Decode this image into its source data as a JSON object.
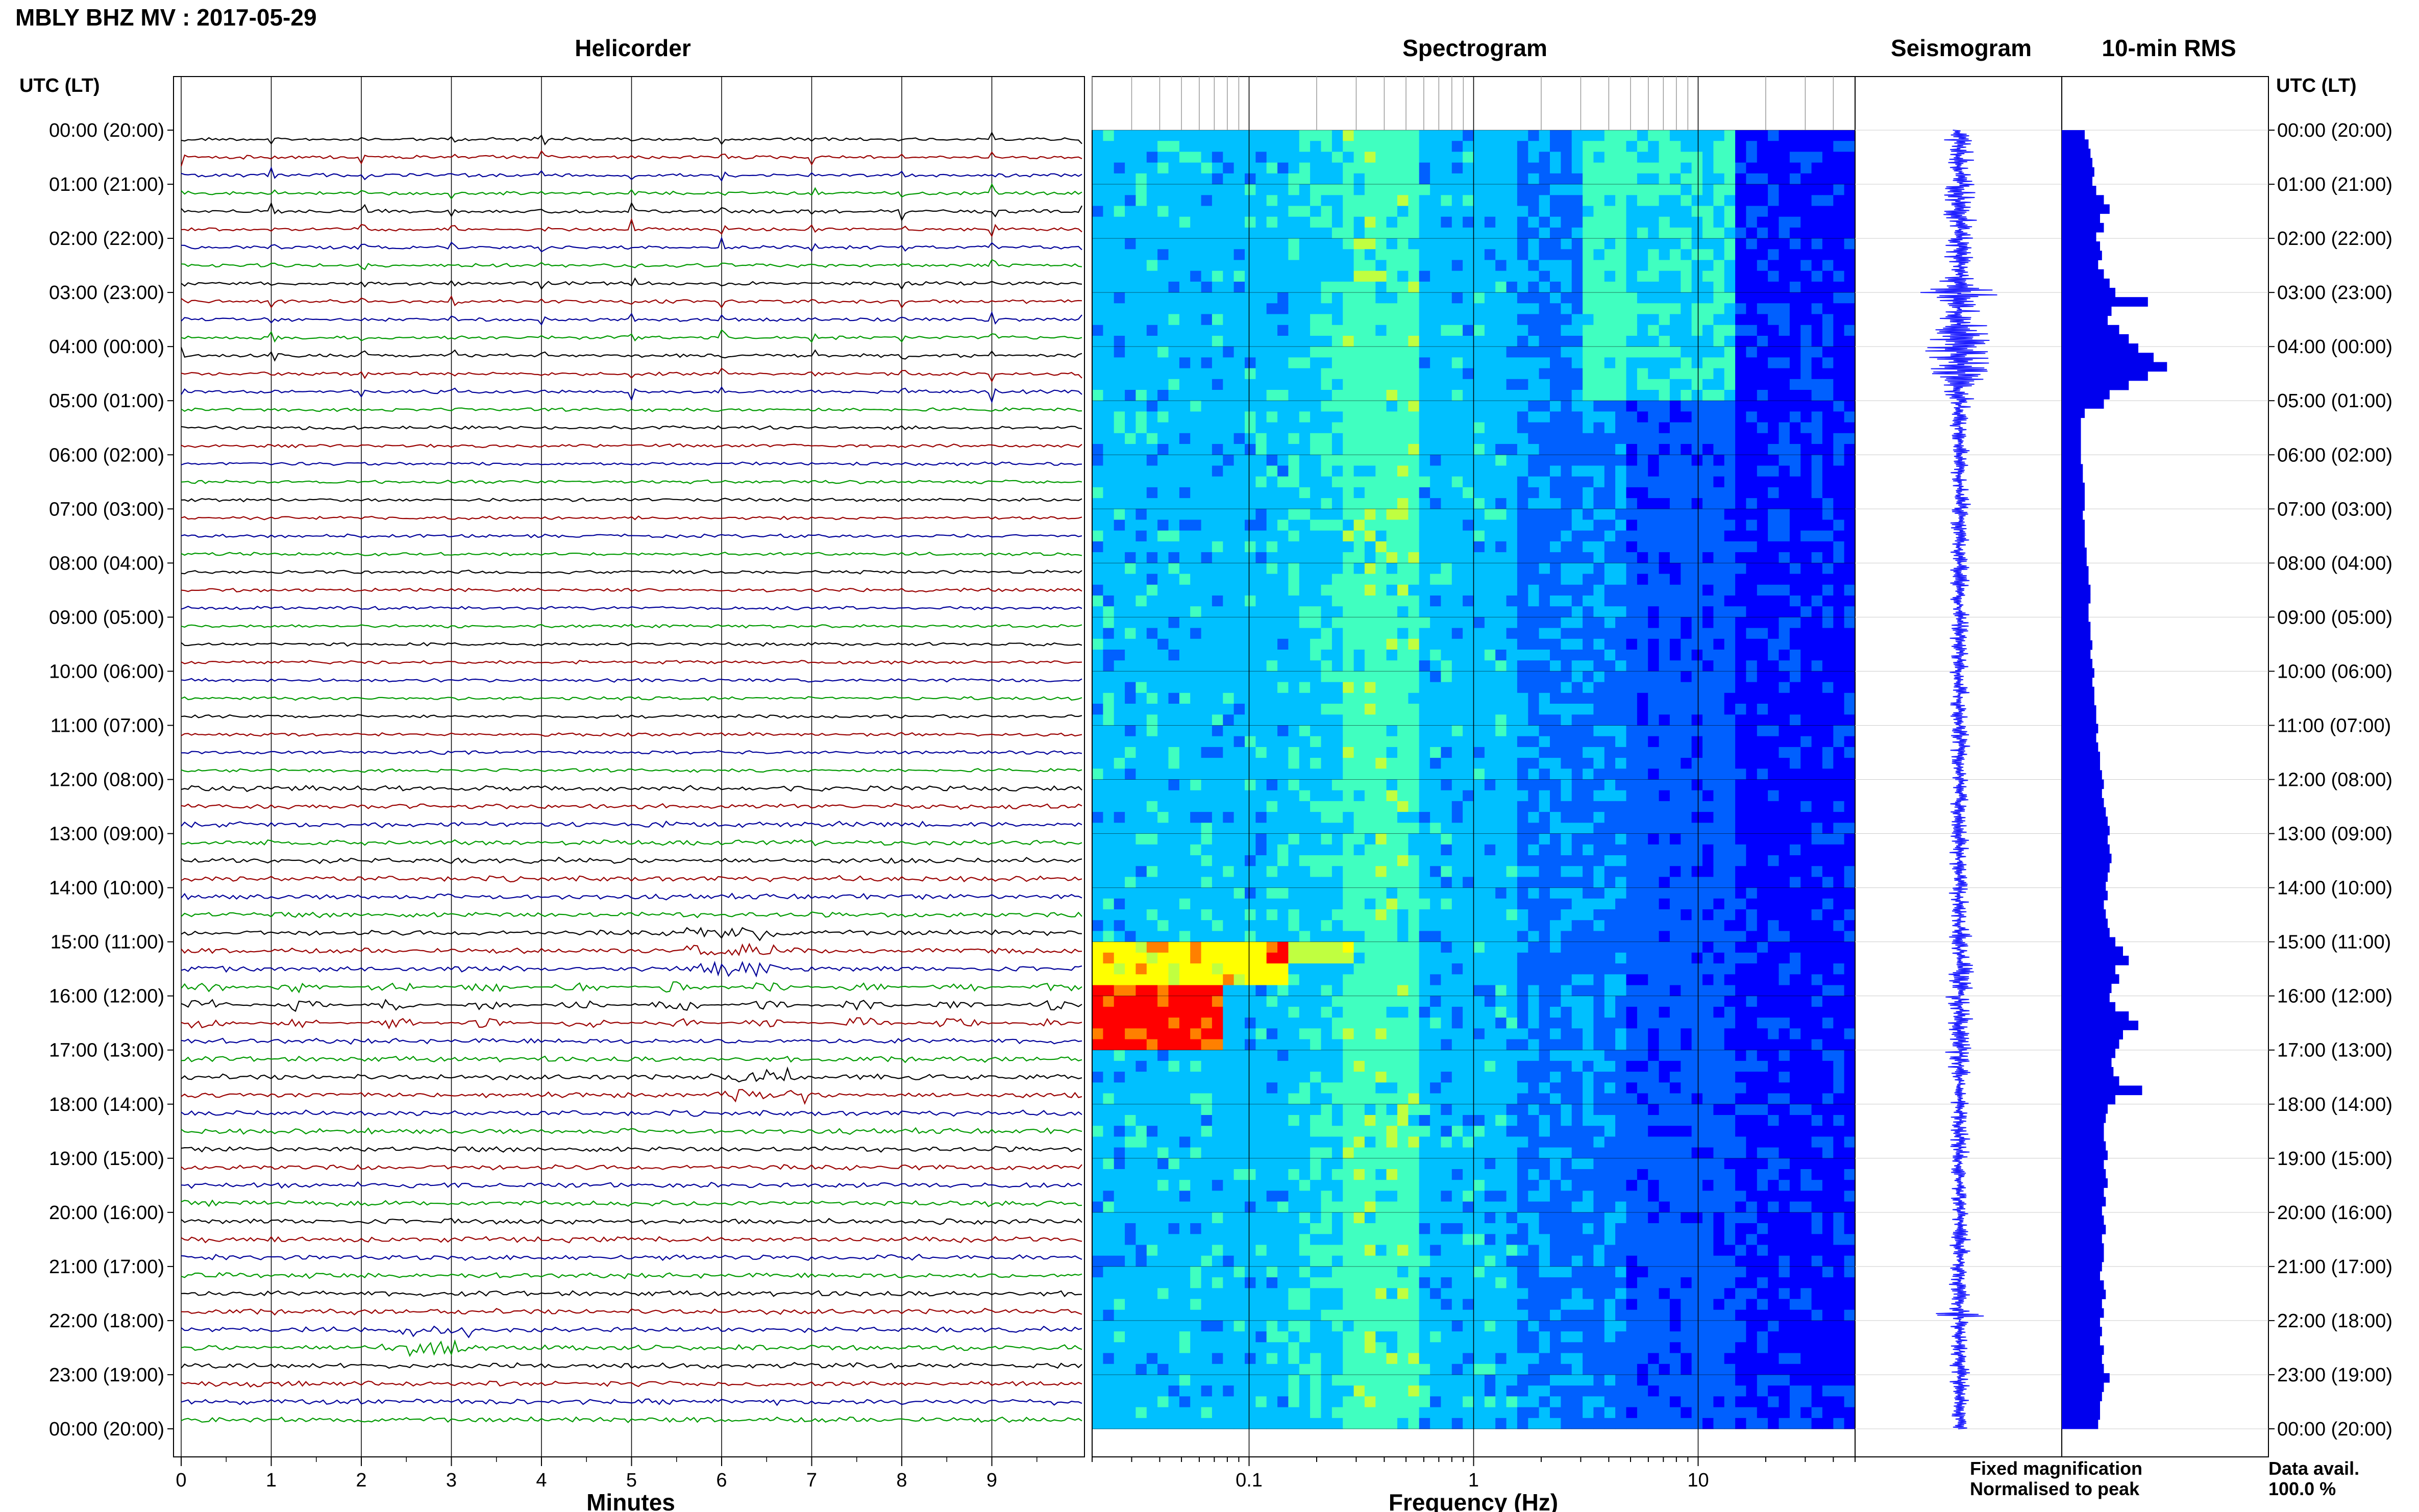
{
  "title": "MBLY BHZ MV : 2017-05-29",
  "panels": {
    "helicorder": "Helicorder",
    "spectrogram": "Spectrogram",
    "seismogram": "Seismogram",
    "rms": "10-min RMS"
  },
  "time_axis_label": "UTC (LT)",
  "time_ticks": [
    "00:00 (20:00)",
    "01:00 (21:00)",
    "02:00 (22:00)",
    "03:00 (23:00)",
    "04:00 (00:00)",
    "05:00 (01:00)",
    "06:00 (02:00)",
    "07:00 (03:00)",
    "08:00 (04:00)",
    "09:00 (05:00)",
    "10:00 (06:00)",
    "11:00 (07:00)",
    "12:00 (08:00)",
    "13:00 (09:00)",
    "14:00 (10:00)",
    "15:00 (11:00)",
    "16:00 (12:00)",
    "17:00 (13:00)",
    "18:00 (14:00)",
    "19:00 (15:00)",
    "20:00 (16:00)",
    "21:00 (17:00)",
    "22:00 (18:00)",
    "23:00 (19:00)",
    "00:00 (20:00)"
  ],
  "minutes_label": "Minutes",
  "frequency_label": "Frequency (Hz)",
  "legend": {
    "fixed": "Fixed magnification",
    "normalised": "Normalised to peak",
    "fixed_color": "#0000ff",
    "normalised_color": "#ff0000"
  },
  "data_avail": {
    "label": "Data avail.",
    "value": "100.0 %"
  },
  "chart_data": {
    "type": "heatmap",
    "helicorder": {
      "x_ticks": [
        "0",
        "1",
        "2",
        "3",
        "4",
        "5",
        "6",
        "7",
        "8",
        "9"
      ],
      "xlim": [
        0,
        10
      ],
      "rows": 72,
      "row_minutes": 20,
      "trace_colors": [
        "#000000",
        "#990000",
        "#000099",
        "#009900"
      ],
      "events": [
        {
          "hours": [
            0,
            5
          ],
          "spacing_min": 1,
          "note": "repeating bursts each minute"
        },
        {
          "hour": 15.0,
          "minute": 6.1,
          "amp": "large"
        },
        {
          "hour": 17.4,
          "minute": 6.5,
          "amp": "large"
        },
        {
          "hour": 22.1,
          "minute": 2.7,
          "amp": "large"
        }
      ]
    },
    "spectrogram": {
      "x_ticks": [
        "0.1",
        "1",
        "10"
      ],
      "xscale": "log",
      "xlim": [
        0.02,
        50
      ],
      "colormap": [
        "#00008b",
        "#0000ff",
        "#0060ff",
        "#00c0ff",
        "#40ffc0",
        "#c0ff40",
        "#ffff00",
        "#ff8000",
        "#ff0000"
      ],
      "features": [
        {
          "hours": [
            0,
            5
          ],
          "freq_hz": [
            4,
            12
          ],
          "intensity": "high"
        },
        {
          "hours": [
            15.0,
            16.8
          ],
          "freq_hz": [
            0.02,
            0.12
          ],
          "intensity": "high"
        }
      ]
    },
    "rms": {
      "interval_min": 10,
      "values": [
        0.12,
        0.14,
        0.15,
        0.16,
        0.17,
        0.16,
        0.18,
        0.22,
        0.25,
        0.2,
        0.22,
        0.18,
        0.2,
        0.21,
        0.19,
        0.22,
        0.25,
        0.28,
        0.45,
        0.26,
        0.24,
        0.3,
        0.35,
        0.4,
        0.48,
        0.55,
        0.45,
        0.35,
        0.25,
        0.22,
        0.12,
        0.1,
        0.1,
        0.1,
        0.1,
        0.1,
        0.11,
        0.11,
        0.12,
        0.12,
        0.12,
        0.11,
        0.12,
        0.12,
        0.12,
        0.13,
        0.13,
        0.14,
        0.14,
        0.15,
        0.15,
        0.14,
        0.14,
        0.15,
        0.15,
        0.16,
        0.15,
        0.16,
        0.17,
        0.16,
        0.17,
        0.17,
        0.18,
        0.18,
        0.19,
        0.18,
        0.19,
        0.2,
        0.2,
        0.21,
        0.22,
        0.21,
        0.22,
        0.23,
        0.24,
        0.25,
        0.24,
        0.25,
        0.26,
        0.25,
        0.24,
        0.23,
        0.24,
        0.22,
        0.23,
        0.24,
        0.25,
        0.28,
        0.32,
        0.35,
        0.28,
        0.3,
        0.26,
        0.25,
        0.28,
        0.35,
        0.4,
        0.32,
        0.3,
        0.28,
        0.26,
        0.27,
        0.3,
        0.42,
        0.28,
        0.24,
        0.23,
        0.22,
        0.22,
        0.23,
        0.24,
        0.22,
        0.23,
        0.24,
        0.22,
        0.23,
        0.21,
        0.22,
        0.23,
        0.21,
        0.22,
        0.22,
        0.21,
        0.2,
        0.22,
        0.23,
        0.21,
        0.22,
        0.2,
        0.21,
        0.2,
        0.22,
        0.21,
        0.22,
        0.25,
        0.22,
        0.21,
        0.2,
        0.2,
        0.19
      ]
    }
  }
}
